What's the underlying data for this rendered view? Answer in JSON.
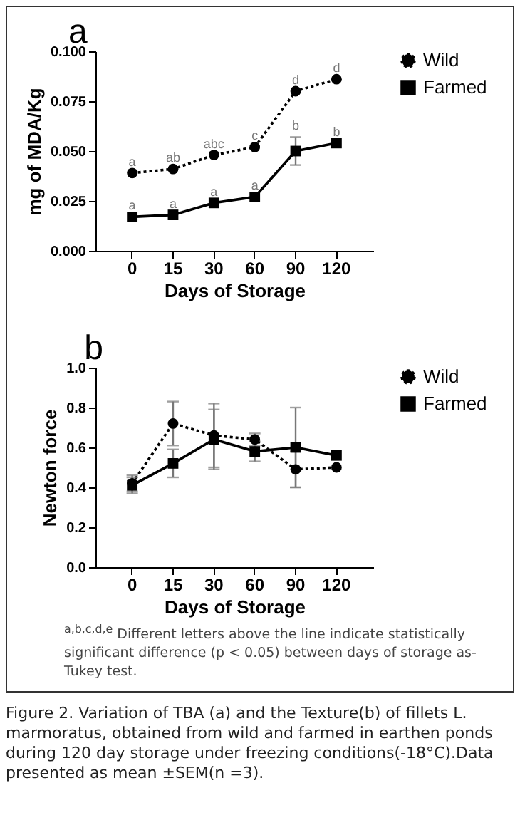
{
  "chart_data": [
    {
      "type": "line",
      "title": "a",
      "xlabel": "Days of Storage",
      "ylabel": "mg of MDA/Kg",
      "categories": [
        "0",
        "15",
        "30",
        "60",
        "90",
        "120"
      ],
      "ylim": [
        0,
        0.1
      ],
      "yticks": [
        {
          "value": 0,
          "label": "0.000"
        },
        {
          "value": 0.025,
          "label": "0.025"
        },
        {
          "value": 0.05,
          "label": "0.050"
        },
        {
          "value": 0.075,
          "label": "0.075"
        },
        {
          "value": 0.1,
          "label": "0.100"
        }
      ],
      "grid": false,
      "legend": "top right",
      "series": [
        {
          "name": "Wild",
          "color": "#000000",
          "marker": "circle",
          "line_style": "dotted",
          "values": [
            0.039,
            0.041,
            0.048,
            0.052,
            0.08,
            0.086
          ]
        },
        {
          "name": "Farmed",
          "color": "#000000",
          "marker": "square",
          "line_style": "solid",
          "values": [
            0.017,
            0.018,
            0.024,
            0.027,
            0.05,
            0.054
          ],
          "errors": [
            null,
            null,
            null,
            null,
            0.007,
            null
          ]
        }
      ],
      "annotations": [
        {
          "text": "a",
          "x": "0",
          "y": 0.039
        },
        {
          "text": "ab",
          "x": "15",
          "y": 0.041
        },
        {
          "text": "abc",
          "x": "30",
          "y": 0.048
        },
        {
          "text": "c",
          "x": "60",
          "y": 0.052
        },
        {
          "text": "d",
          "x": "90",
          "y": 0.08
        },
        {
          "text": "d",
          "x": "120",
          "y": 0.086
        },
        {
          "text": "a",
          "x": "0",
          "y": 0.017
        },
        {
          "text": "a",
          "x": "15",
          "y": 0.018
        },
        {
          "text": "a",
          "x": "30",
          "y": 0.024
        },
        {
          "text": "a",
          "x": "60",
          "y": 0.027
        },
        {
          "text": "b",
          "x": "90",
          "y": 0.057
        },
        {
          "text": "b",
          "x": "120",
          "y": 0.054
        }
      ]
    },
    {
      "type": "line",
      "title": "b",
      "xlabel": "Days of Storage",
      "ylabel": "Newton force",
      "categories": [
        "0",
        "15",
        "30",
        "60",
        "90",
        "120"
      ],
      "ylim": [
        0,
        1
      ],
      "yticks": [
        {
          "value": 0,
          "label": "0.0"
        },
        {
          "value": 0.2,
          "label": "0.2"
        },
        {
          "value": 0.4,
          "label": "0.4"
        },
        {
          "value": 0.6,
          "label": "0.6"
        },
        {
          "value": 0.8,
          "label": "0.8"
        },
        {
          "value": 1,
          "label": "1.0"
        }
      ],
      "grid": false,
      "legend": "top right",
      "series": [
        {
          "name": "Wild",
          "color": "#000000",
          "marker": "circle",
          "line_style": "dotted",
          "values": [
            0.42,
            0.72,
            0.66,
            0.64,
            0.49,
            0.5
          ],
          "errors": [
            0.04,
            0.11,
            0.16,
            0.03,
            0.09,
            null
          ]
        },
        {
          "name": "Farmed",
          "color": "#000000",
          "marker": "square",
          "line_style": "solid",
          "values": [
            0.41,
            0.52,
            0.64,
            0.58,
            0.6,
            0.56
          ],
          "errors": [
            0.04,
            0.07,
            0.15,
            0.05,
            0.2,
            null
          ]
        }
      ],
      "annotations": [
        "$^{a,b,c,d,e}$ Different letters above the line indicate statistically significant difference (p < 0.05) between days of storage as-Tukey test.",
        "Figure 2. Variation of TBA (a) and the Texture(b) of fillets L. marmoratus, obtained from wild and farmed in earthen ponds during 120 day storage under freezing conditions(-18°C).Data presented as mean ±SEM(n =3)."
      ]
    }
  ]
}
